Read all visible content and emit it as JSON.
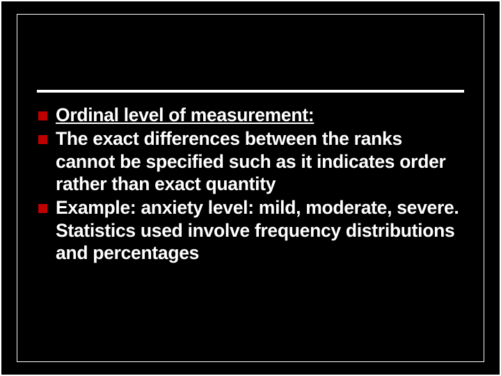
{
  "slide": {
    "background_color": "#000000",
    "text_color": "#ffffff",
    "bullet_color": "#bf0000",
    "divider_color": "#ffffff",
    "font_family": "Verdana, sans-serif",
    "font_weight": 700,
    "font_size_pt": 20,
    "bullets": [
      {
        "text": "Ordinal level of measurement:",
        "underline": true
      },
      {
        "text": "The exact differences between the ranks cannot be specified such as it indicates order rather than exact quantity",
        "underline": false
      },
      {
        "text": "Example: anxiety level: mild, moderate, severe. Statistics used involve frequency distributions and percentages",
        "underline": false
      }
    ]
  }
}
